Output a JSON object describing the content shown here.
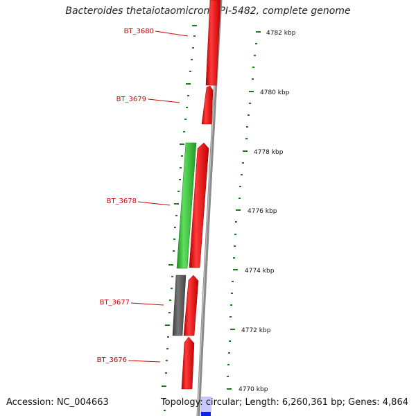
{
  "title": "Bacteroides thetaiotaomicron VPI-5482, complete genome",
  "accession": "Accession: NC_004663",
  "topology": "Topology: circular; Length: 6,260,361 bp; Genes: 4,864",
  "colors": {
    "forward_gene": "#ee1111",
    "reverse_gene": "#33bb33",
    "other_gene": "#555555",
    "backbone": "#888888",
    "ticks": "#1a7a1a",
    "label": "#cc0000",
    "highlight": "#1122dd"
  },
  "genes": [
    {
      "id": "BT_3680",
      "label": "BT_3680"
    },
    {
      "id": "BT_3679",
      "label": "BT_3679"
    },
    {
      "id": "BT_3678",
      "label": "BT_3678"
    },
    {
      "id": "BT_3677",
      "label": "BT_3677"
    },
    {
      "id": "BT_3676",
      "label": "BT_3676"
    }
  ],
  "scale_labels": [
    "4782 kbp",
    "4780 kbp",
    "4778 kbp",
    "4776 kbp",
    "4774 kbp",
    "4772 kbp",
    "4770 kbp"
  ]
}
